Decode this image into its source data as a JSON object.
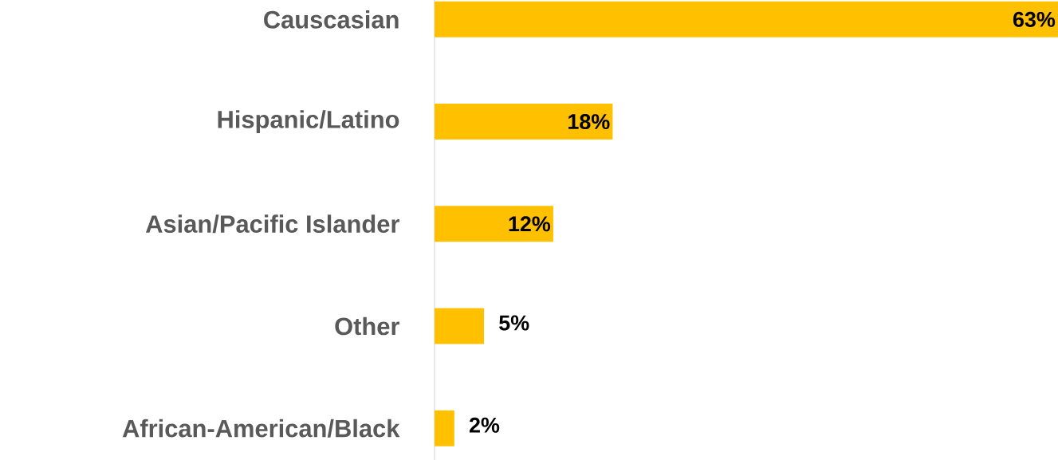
{
  "chart_data": {
    "type": "bar",
    "orientation": "horizontal",
    "categories": [
      "Causcasian",
      "Hispanic/Latino",
      "Asian/Pacific Islander",
      "Other",
      "African-American/Black"
    ],
    "values": [
      63,
      18,
      12,
      5,
      2
    ],
    "value_labels": [
      "63%",
      "18%",
      "12%",
      "5%",
      "2%"
    ],
    "color": "#ffc000"
  }
}
